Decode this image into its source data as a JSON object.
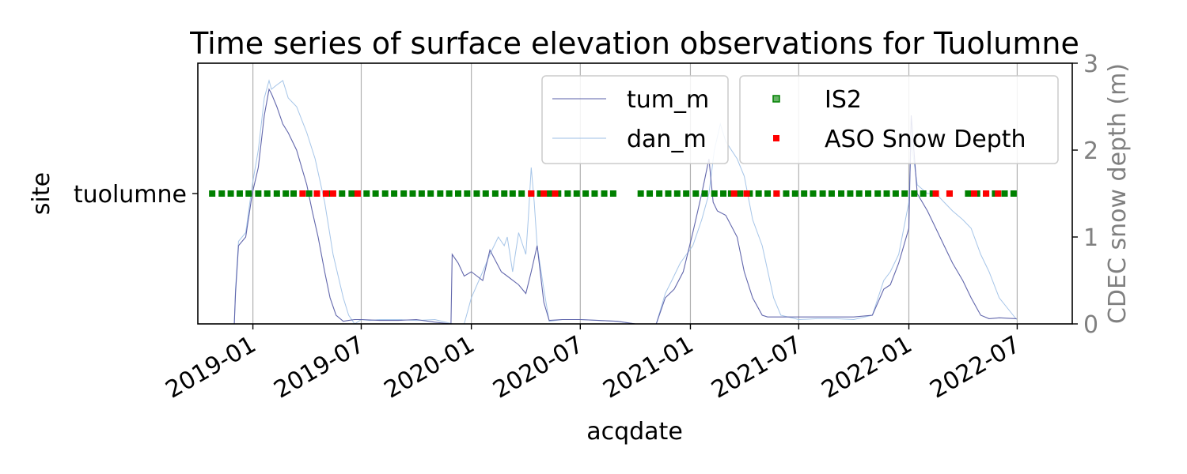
{
  "chart_data": {
    "type": "line",
    "title": "Time series of surface elevation observations for Tuolumne",
    "xlabel": "acqdate",
    "ylabel": "site",
    "y2label": "CDEC snow depth (m)",
    "categories": [
      "tuolumne"
    ],
    "xlim": [
      "2018-10-01",
      "2022-10-01"
    ],
    "x_ticks": [
      "2019-01",
      "2019-07",
      "2020-01",
      "2020-07",
      "2021-01",
      "2021-07",
      "2022-01",
      "2022-07"
    ],
    "y2lim": [
      0,
      3
    ],
    "y2_ticks": [
      "0",
      "1",
      "2",
      "3"
    ],
    "grid": "x",
    "legend_lines_placement": "top-center",
    "legend_points_placement": "top-right",
    "colors": {
      "tum_m": "#5a5fa8",
      "dan_m": "#9cbfe6",
      "IS2": "#008000",
      "ASO": "#ff0000",
      "right_axis": "#808080"
    },
    "series": [
      {
        "name": "tum_m",
        "color": "#5a5fa8",
        "x": [
          "2018-11-10",
          "2018-12-01",
          "2018-12-03",
          "2018-12-08",
          "2018-12-20",
          "2018-12-31",
          "2019-01-10",
          "2019-01-20",
          "2019-01-28",
          "2019-02-01",
          "2019-02-10",
          "2019-02-20",
          "2019-03-01",
          "2019-03-15",
          "2019-04-01",
          "2019-04-10",
          "2019-04-20",
          "2019-05-01",
          "2019-05-10",
          "2019-05-20",
          "2019-06-01",
          "2019-06-10",
          "2019-06-20",
          "2019-07-01",
          "2019-08-01",
          "2019-09-01",
          "2019-10-01",
          "2019-11-01",
          "2019-11-28",
          "2019-11-30",
          "2019-12-10",
          "2019-12-20",
          "2020-01-01",
          "2020-01-20",
          "2020-02-01",
          "2020-02-20",
          "2020-03-01",
          "2020-03-20",
          "2020-04-01",
          "2020-04-10",
          "2020-04-20",
          "2020-05-01",
          "2020-05-10",
          "2020-06-01",
          "2020-07-01",
          "2020-08-01",
          "2020-09-01",
          "2020-10-01",
          "2020-10-25",
          "2020-11-05",
          "2020-11-20",
          "2020-12-05",
          "2020-12-20",
          "2021-01-05",
          "2021-01-20",
          "2021-02-01",
          "2021-02-08",
          "2021-02-15",
          "2021-03-01",
          "2021-03-20",
          "2021-04-01",
          "2021-04-15",
          "2021-05-01",
          "2021-05-10",
          "2021-06-01",
          "2021-07-01",
          "2021-08-01",
          "2021-09-01",
          "2021-10-01",
          "2021-11-01",
          "2021-11-20",
          "2021-12-01",
          "2021-12-15",
          "2022-01-01",
          "2022-01-05",
          "2022-01-15",
          "2022-02-01",
          "2022-02-15",
          "2022-03-01",
          "2022-03-15",
          "2022-04-01",
          "2022-04-15",
          "2022-05-01",
          "2022-05-15",
          "2022-06-01",
          "2022-06-30"
        ],
        "y": [
          0.0,
          0.0,
          0.35,
          0.9,
          1.0,
          1.5,
          1.8,
          2.4,
          2.7,
          2.65,
          2.5,
          2.3,
          2.2,
          2.0,
          1.6,
          1.3,
          1.0,
          0.6,
          0.3,
          0.1,
          0.03,
          0.04,
          0.05,
          0.05,
          0.04,
          0.04,
          0.05,
          0.02,
          0.0,
          0.8,
          0.7,
          0.55,
          0.6,
          0.5,
          0.85,
          0.6,
          0.55,
          0.45,
          0.35,
          0.6,
          0.9,
          0.25,
          0.04,
          0.05,
          0.05,
          0.04,
          0.03,
          0.0,
          0.0,
          0.0,
          0.3,
          0.4,
          0.6,
          1.05,
          1.5,
          1.9,
          1.4,
          1.3,
          1.25,
          1.0,
          0.6,
          0.3,
          0.1,
          0.08,
          0.08,
          0.08,
          0.08,
          0.08,
          0.08,
          0.1,
          0.4,
          0.45,
          0.7,
          1.1,
          2.4,
          1.5,
          1.3,
          1.1,
          0.9,
          0.7,
          0.5,
          0.3,
          0.1,
          0.06,
          0.07,
          0.06
        ]
      },
      {
        "name": "dan_m",
        "color": "#9cbfe6",
        "x": [
          "2018-11-10",
          "2018-12-01",
          "2018-12-03",
          "2018-12-08",
          "2018-12-20",
          "2018-12-31",
          "2019-01-10",
          "2019-01-20",
          "2019-01-28",
          "2019-02-01",
          "2019-02-10",
          "2019-02-20",
          "2019-03-01",
          "2019-03-15",
          "2019-04-01",
          "2019-04-15",
          "2019-05-01",
          "2019-05-15",
          "2019-06-01",
          "2019-06-10",
          "2019-06-20",
          "2019-07-01",
          "2019-07-15",
          "2019-08-01",
          "2019-09-01",
          "2019-10-01",
          "2019-11-01",
          "2019-12-01",
          "2019-12-10",
          "2019-12-20",
          "2020-01-01",
          "2020-01-20",
          "2020-02-01",
          "2020-02-15",
          "2020-02-25",
          "2020-03-01",
          "2020-03-10",
          "2020-03-20",
          "2020-04-01",
          "2020-04-05",
          "2020-04-10",
          "2020-04-15",
          "2020-04-20",
          "2020-05-01",
          "2020-05-10",
          "2020-06-01",
          "2020-07-01",
          "2020-08-01",
          "2020-09-01",
          "2020-10-01",
          "2020-10-25",
          "2020-11-05",
          "2020-11-20",
          "2020-12-01",
          "2020-12-15",
          "2021-01-05",
          "2021-01-20",
          "2021-02-01",
          "2021-02-10",
          "2021-02-20",
          "2021-03-01",
          "2021-03-20",
          "2021-04-01",
          "2021-04-15",
          "2021-05-01",
          "2021-05-20",
          "2021-06-01",
          "2021-07-01",
          "2021-08-01",
          "2021-09-01",
          "2021-10-01",
          "2021-11-01",
          "2021-11-20",
          "2021-12-01",
          "2021-12-15",
          "2022-01-01",
          "2022-01-05",
          "2022-01-15",
          "2022-02-01",
          "2022-02-15",
          "2022-03-01",
          "2022-03-15",
          "2022-04-01",
          "2022-04-15",
          "2022-05-01",
          "2022-05-15",
          "2022-06-01",
          "2022-06-30"
        ],
        "y": [
          0.0,
          0.0,
          0.4,
          0.95,
          1.05,
          1.6,
          2.0,
          2.6,
          2.8,
          2.7,
          2.75,
          2.8,
          2.6,
          2.5,
          2.2,
          1.9,
          1.4,
          0.8,
          0.3,
          0.1,
          0.0,
          0.05,
          0.04,
          0.05,
          0.05,
          0.04,
          0.05,
          0.0,
          0.0,
          0.0,
          0.3,
          0.6,
          0.8,
          1.0,
          0.9,
          1.0,
          0.6,
          1.05,
          0.8,
          1.2,
          1.8,
          1.4,
          0.9,
          0.4,
          0.03,
          0.05,
          0.05,
          0.04,
          0.03,
          0.0,
          0.0,
          0.0,
          0.35,
          0.5,
          0.7,
          0.9,
          1.2,
          1.5,
          2.0,
          2.3,
          2.1,
          1.9,
          1.7,
          1.2,
          0.9,
          0.3,
          0.1,
          0.05,
          0.06,
          0.06,
          0.05,
          0.1,
          0.5,
          0.6,
          0.8,
          1.4,
          2.1,
          1.6,
          1.5,
          1.5,
          1.4,
          1.3,
          1.2,
          1.1,
          0.8,
          0.6,
          0.3,
          0.05
        ]
      },
      {
        "name": "IS2",
        "color": "#008000",
        "x": [
          "2018-10-25",
          "2018-11-10",
          "2018-11-25",
          "2018-12-10",
          "2018-12-25",
          "2019-01-10",
          "2019-01-25",
          "2019-02-10",
          "2019-02-25",
          "2019-03-10",
          "2019-04-05",
          "2019-05-10",
          "2019-05-30",
          "2019-06-15",
          "2019-07-10",
          "2019-07-25",
          "2019-08-10",
          "2019-08-25",
          "2019-09-10",
          "2019-09-25",
          "2019-10-10",
          "2019-10-25",
          "2019-11-10",
          "2019-11-25",
          "2019-12-10",
          "2019-12-25",
          "2020-01-10",
          "2020-01-25",
          "2020-02-10",
          "2020-02-25",
          "2020-03-10",
          "2020-03-25",
          "2020-04-10",
          "2020-04-25",
          "2020-05-10",
          "2020-05-25",
          "2020-06-10",
          "2020-06-25",
          "2020-07-10",
          "2020-07-25",
          "2020-08-10",
          "2020-08-25",
          "2020-10-10",
          "2020-10-25",
          "2020-11-10",
          "2020-11-25",
          "2020-12-10",
          "2020-12-25",
          "2021-01-10",
          "2021-01-25",
          "2021-02-10",
          "2021-02-25",
          "2021-03-10",
          "2021-03-25",
          "2021-04-10",
          "2021-04-25",
          "2021-05-10",
          "2021-05-25",
          "2021-06-10",
          "2021-06-25",
          "2021-07-10",
          "2021-07-25",
          "2021-08-10",
          "2021-08-25",
          "2021-09-10",
          "2021-09-25",
          "2021-10-10",
          "2021-10-25",
          "2021-11-10",
          "2021-11-25",
          "2021-12-10",
          "2021-12-25",
          "2022-01-10",
          "2022-01-25",
          "2022-02-10",
          "2022-03-10",
          "2022-04-10",
          "2022-04-25",
          "2022-05-10",
          "2022-05-25",
          "2022-06-10",
          "2022-06-25"
        ],
        "y": [
          "tuolumne",
          "tuolumne",
          "tuolumne",
          "tuolumne",
          "tuolumne",
          "tuolumne",
          "tuolumne",
          "tuolumne",
          "tuolumne",
          "tuolumne",
          "tuolumne",
          "tuolumne",
          "tuolumne",
          "tuolumne",
          "tuolumne",
          "tuolumne",
          "tuolumne",
          "tuolumne",
          "tuolumne",
          "tuolumne",
          "tuolumne",
          "tuolumne",
          "tuolumne",
          "tuolumne",
          "tuolumne",
          "tuolumne",
          "tuolumne",
          "tuolumne",
          "tuolumne",
          "tuolumne",
          "tuolumne",
          "tuolumne",
          "tuolumne",
          "tuolumne",
          "tuolumne",
          "tuolumne",
          "tuolumne",
          "tuolumne",
          "tuolumne",
          "tuolumne",
          "tuolumne",
          "tuolumne",
          "tuolumne",
          "tuolumne",
          "tuolumne",
          "tuolumne",
          "tuolumne",
          "tuolumne",
          "tuolumne",
          "tuolumne",
          "tuolumne",
          "tuolumne",
          "tuolumne",
          "tuolumne",
          "tuolumne",
          "tuolumne",
          "tuolumne",
          "tuolumne",
          "tuolumne",
          "tuolumne",
          "tuolumne",
          "tuolumne",
          "tuolumne",
          "tuolumne",
          "tuolumne",
          "tuolumne",
          "tuolumne",
          "tuolumne",
          "tuolumne",
          "tuolumne",
          "tuolumne",
          "tuolumne",
          "tuolumne",
          "tuolumne",
          "tuolumne",
          "tuolumne",
          "tuolumne",
          "tuolumne",
          "tuolumne",
          "tuolumne",
          "tuolumne",
          "tuolumne"
        ]
      },
      {
        "name": "ASO Snow Depth",
        "color": "#ff0000",
        "x": [
          "2019-03-25",
          "2019-04-18",
          "2019-05-03",
          "2019-05-15",
          "2019-06-25",
          "2020-04-10",
          "2020-05-01",
          "2020-05-20",
          "2021-03-15",
          "2021-04-05",
          "2021-05-25",
          "2022-02-15",
          "2022-03-10",
          "2022-04-20",
          "2022-05-10",
          "2022-05-30"
        ],
        "y": [
          "tuolumne",
          "tuolumne",
          "tuolumne",
          "tuolumne",
          "tuolumne",
          "tuolumne",
          "tuolumne",
          "tuolumne",
          "tuolumne",
          "tuolumne",
          "tuolumne",
          "tuolumne",
          "tuolumne",
          "tuolumne",
          "tuolumne",
          "tuolumne"
        ]
      }
    ]
  }
}
